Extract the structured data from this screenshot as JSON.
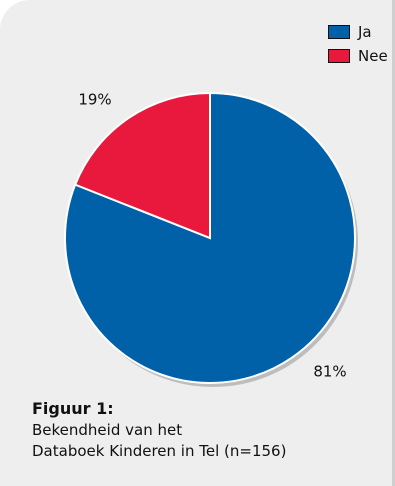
{
  "chart_data": {
    "type": "pie",
    "slices": [
      {
        "label": "Ja",
        "value": 81,
        "value_label": "81%",
        "color": "#0060a8"
      },
      {
        "label": "Nee",
        "value": 19,
        "value_label": "19%",
        "color": "#e8193c"
      }
    ],
    "legend": {
      "position": "top-right"
    }
  },
  "caption": {
    "title": "Figuur 1:",
    "line1": "Bekendheid van het",
    "line2": "Databoek Kinderen in Tel (n=156)"
  }
}
